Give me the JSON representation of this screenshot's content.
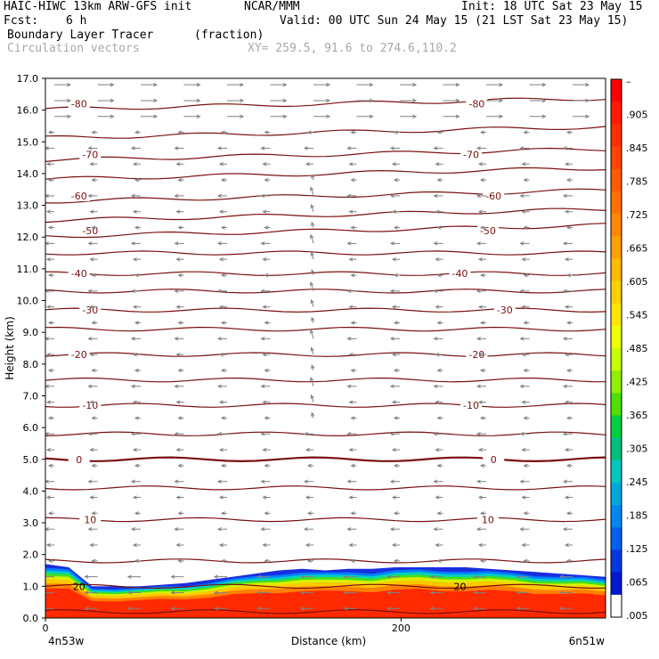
{
  "header": {
    "line1_left": "HAIC-HIWC 13km ARW-GFS init",
    "line1_mid": "NCAR/MMM",
    "line1_right": "Init: 18 UTC Sat 23 May 15",
    "fcst_label": "Fcst:",
    "fcst_value": "6 h",
    "valid": "Valid: 00 UTC Sun 24 May 15 (21 LST Sat 23 May 15)",
    "field_name": "Boundary Layer Tracer",
    "field_units": "(fraction)",
    "vector_label": "Circulation vectors",
    "xy_label": "XY= 259.5, 91.6 to 274.6,110.2"
  },
  "colors": {
    "contour": "#7a1010",
    "vector": "#808080",
    "tracer_high": "#ff2200",
    "tracer_mid": "#ffcc00",
    "tracer_low": "#0033dd",
    "header_grey": "#a8a8a8"
  },
  "chart_data": {
    "type": "cross-section",
    "ylabel": "Height (km)",
    "xlabel": "Distance (km)",
    "x_left_label": "4n53w",
    "x_right_label": "6n51w",
    "ylim": [
      0,
      17
    ],
    "xlim": [
      0,
      315
    ],
    "y_ticks": [
      "0.0",
      "1.0",
      "2.0",
      "3.0",
      "4.0",
      "5.0",
      "6.0",
      "7.0",
      "8.0",
      "9.0",
      "10.0",
      "11.0",
      "12.0",
      "13.0",
      "14.0",
      "15.0",
      "16.0",
      "17.0"
    ],
    "x_ticks": [
      {
        "value": 0,
        "label": "0"
      },
      {
        "value": 200,
        "label": "200"
      }
    ],
    "temperature_contours": [
      {
        "label": "20",
        "height_km": 1.0
      },
      {
        "label": "10",
        "height_km": 3.1
      },
      {
        "label": "0",
        "height_km": 5.0
      },
      {
        "label": "-10",
        "height_km": 6.7
      },
      {
        "label": "-20",
        "height_km": 8.3
      },
      {
        "label": "-30",
        "height_km": 9.7
      },
      {
        "label": "-40",
        "height_km": 10.85
      },
      {
        "label": "-50",
        "height_km": 12.2
      },
      {
        "label": "-60",
        "height_km": 13.3
      },
      {
        "label": "-70",
        "height_km": 14.6
      },
      {
        "label": "-80",
        "height_km": 16.2
      }
    ],
    "unlabeled_contour_heights_km": [
      0.2,
      1.8,
      4.1,
      5.8,
      7.5,
      9.1,
      10.3,
      11.5,
      12.7,
      14.0,
      15.3
    ],
    "colorbar": {
      "labels": [
        "–",
        ".905",
        ".845",
        ".785",
        ".725",
        ".665",
        ".605",
        ".545",
        ".485",
        ".425",
        ".365",
        ".305",
        ".245",
        ".185",
        ".125",
        ".065",
        ".005"
      ],
      "colors": [
        "#ff0000",
        "#ff1a00",
        "#ff2e00",
        "#ff4400",
        "#ff5a00",
        "#ff7000",
        "#ff8800",
        "#ffa000",
        "#ffbb00",
        "#ffd000",
        "#ffe600",
        "#eeff00",
        "#c8ff00",
        "#90f000",
        "#50e000",
        "#00d040",
        "#00c080",
        "#00c8c0",
        "#00a8e0",
        "#0088ee",
        "#0060f0",
        "#0038e0",
        "#0018d0",
        "#ffffff"
      ]
    },
    "tracer_layer_top_km": [
      1.7,
      1.6,
      1.0,
      1.0,
      1.0,
      1.05,
      1.1,
      1.2,
      1.3,
      1.4,
      1.5,
      1.55,
      1.5,
      1.55,
      1.55,
      1.6,
      1.6,
      1.6,
      1.6,
      1.55,
      1.5,
      1.45,
      1.4,
      1.35,
      1.3
    ]
  }
}
